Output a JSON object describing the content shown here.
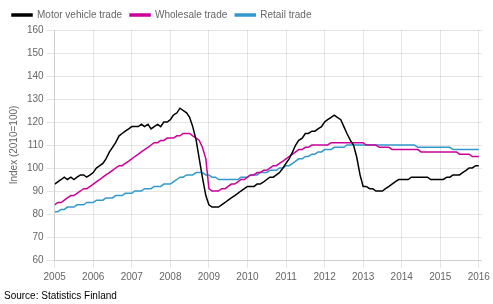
{
  "chart_data": {
    "type": "line",
    "y_label": "Index (2010=100)",
    "annotations": [
      "Source: Statistics Finland"
    ],
    "xlim": [
      2005.0,
      2016.08
    ],
    "xticks": [
      2005,
      2006,
      2007,
      2008,
      2009,
      2010,
      2011,
      2012,
      2013,
      2014,
      2015,
      2016
    ],
    "ylim": [
      60,
      160
    ],
    "yticks": [
      60,
      70,
      80,
      90,
      100,
      110,
      120,
      130,
      140,
      150,
      160
    ],
    "grid": true,
    "legend": "upper left",
    "x": [
      2005.0,
      2005.08,
      2005.17,
      2005.25,
      2005.33,
      2005.42,
      2005.5,
      2005.58,
      2005.67,
      2005.75,
      2005.83,
      2005.92,
      2006.0,
      2006.08,
      2006.17,
      2006.25,
      2006.33,
      2006.42,
      2006.5,
      2006.58,
      2006.67,
      2006.75,
      2006.83,
      2006.92,
      2007.0,
      2007.08,
      2007.17,
      2007.25,
      2007.33,
      2007.42,
      2007.5,
      2007.58,
      2007.67,
      2007.75,
      2007.83,
      2007.92,
      2008.0,
      2008.08,
      2008.17,
      2008.25,
      2008.33,
      2008.42,
      2008.5,
      2008.58,
      2008.67,
      2008.75,
      2008.83,
      2008.92,
      2009.0,
      2009.08,
      2009.17,
      2009.25,
      2009.33,
      2009.42,
      2009.5,
      2009.58,
      2009.67,
      2009.75,
      2009.83,
      2009.92,
      2010.0,
      2010.08,
      2010.17,
      2010.25,
      2010.33,
      2010.42,
      2010.5,
      2010.58,
      2010.67,
      2010.75,
      2010.83,
      2010.92,
      2011.0,
      2011.08,
      2011.17,
      2011.25,
      2011.33,
      2011.42,
      2011.5,
      2011.58,
      2011.67,
      2011.75,
      2011.83,
      2011.92,
      2012.0,
      2012.08,
      2012.17,
      2012.25,
      2012.33,
      2012.42,
      2012.5,
      2012.58,
      2012.67,
      2012.75,
      2012.83,
      2012.92,
      2013.0,
      2013.08,
      2013.17,
      2013.25,
      2013.33,
      2013.42,
      2013.5,
      2013.58,
      2013.67,
      2013.75,
      2013.83,
      2013.92,
      2014.0,
      2014.08,
      2014.17,
      2014.25,
      2014.33,
      2014.42,
      2014.5,
      2014.58,
      2014.67,
      2014.75,
      2014.83,
      2014.92,
      2015.0,
      2015.08,
      2015.17,
      2015.25,
      2015.33,
      2015.42,
      2015.5,
      2015.58,
      2015.67,
      2015.75,
      2015.83,
      2015.92,
      2016.0
    ],
    "series": [
      {
        "name": "Motor vehicle trade",
        "color": "#000000",
        "values": [
          93,
          94,
          95,
          96,
          95,
          96,
          95,
          96,
          97,
          97,
          96,
          97,
          98,
          100,
          101,
          102,
          104,
          107,
          109,
          111,
          114,
          115,
          116,
          117,
          118,
          118,
          118,
          119,
          118,
          119,
          117,
          118,
          119,
          118,
          120,
          120,
          121,
          123,
          124,
          126,
          125,
          124,
          122,
          118,
          112,
          104,
          96,
          88,
          84,
          83,
          83,
          83,
          84,
          85,
          86,
          87,
          88,
          89,
          90,
          91,
          92,
          92,
          92,
          93,
          93,
          94,
          95,
          96,
          96,
          97,
          98,
          100,
          102,
          104,
          107,
          110,
          112,
          113,
          115,
          115,
          116,
          116,
          117,
          118,
          120,
          121,
          122,
          123,
          122,
          121,
          118,
          115,
          112,
          110,
          105,
          97,
          92,
          92,
          91,
          91,
          90,
          90,
          90,
          91,
          92,
          93,
          94,
          95,
          95,
          95,
          95,
          96,
          96,
          96,
          96,
          96,
          96,
          95,
          95,
          95,
          95,
          95,
          96,
          96,
          97,
          97,
          97,
          98,
          99,
          100,
          100,
          101,
          101
        ]
      },
      {
        "name": "Wholesale trade",
        "color": "#cc0099",
        "values": [
          84,
          85,
          85,
          86,
          87,
          88,
          88,
          89,
          90,
          91,
          91,
          92,
          93,
          94,
          95,
          96,
          97,
          98,
          99,
          100,
          101,
          101,
          102,
          103,
          104,
          105,
          106,
          107,
          108,
          109,
          110,
          111,
          111,
          112,
          112,
          113,
          113,
          113,
          114,
          114,
          115,
          115,
          115,
          114,
          113,
          112,
          109,
          104,
          91,
          90,
          90,
          90,
          91,
          91,
          92,
          93,
          93,
          94,
          95,
          95,
          96,
          97,
          97,
          98,
          98,
          99,
          99,
          100,
          101,
          101,
          102,
          103,
          104,
          105,
          106,
          107,
          108,
          108,
          109,
          109,
          110,
          110,
          110,
          110,
          110,
          110,
          111,
          111,
          111,
          111,
          111,
          111,
          111,
          111,
          111,
          111,
          111,
          110,
          110,
          110,
          110,
          109,
          109,
          109,
          109,
          108,
          108,
          108,
          108,
          108,
          108,
          108,
          108,
          108,
          107,
          107,
          107,
          107,
          107,
          107,
          107,
          107,
          107,
          107,
          107,
          107,
          106,
          106,
          106,
          106,
          105,
          105,
          105
        ]
      },
      {
        "name": "Retail trade",
        "color": "#3399cc",
        "values": [
          81,
          81,
          82,
          82,
          83,
          83,
          83,
          84,
          84,
          84,
          85,
          85,
          85,
          86,
          86,
          86,
          87,
          87,
          87,
          88,
          88,
          88,
          89,
          89,
          89,
          90,
          90,
          90,
          91,
          91,
          91,
          92,
          92,
          92,
          93,
          93,
          93,
          94,
          95,
          96,
          96,
          97,
          97,
          97,
          98,
          98,
          98,
          97,
          97,
          96,
          96,
          95,
          95,
          95,
          95,
          95,
          95,
          95,
          96,
          96,
          96,
          97,
          97,
          97,
          98,
          98,
          98,
          99,
          99,
          99,
          100,
          100,
          101,
          101,
          102,
          103,
          104,
          104,
          105,
          105,
          106,
          106,
          107,
          107,
          108,
          108,
          108,
          109,
          109,
          109,
          109,
          110,
          110,
          110,
          110,
          110,
          110,
          110,
          110,
          110,
          110,
          110,
          110,
          110,
          110,
          110,
          110,
          110,
          110,
          110,
          110,
          110,
          110,
          109,
          109,
          109,
          109,
          109,
          109,
          109,
          109,
          109,
          109,
          109,
          108,
          108,
          108,
          108,
          108,
          108,
          108,
          108,
          108
        ]
      }
    ]
  }
}
